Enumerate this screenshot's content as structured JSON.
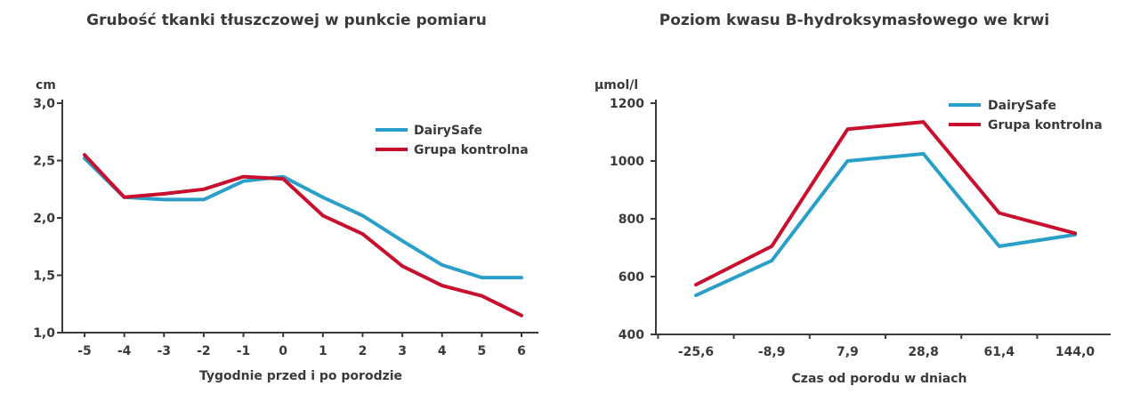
{
  "chart_data": [
    {
      "type": "line",
      "title": "Grubość tkanki tłuszczowej w punkcie pomiaru",
      "ylabel": "cm",
      "xlabel": "Tygodnie przed i po porodzie",
      "categories": [
        "-5",
        "-4",
        "-3",
        "-2",
        "-1",
        "0",
        "1",
        "2",
        "3",
        "4",
        "5",
        "6"
      ],
      "yticks": [
        "1,0",
        "1,5",
        "2,0",
        "2,5",
        "3,0"
      ],
      "ylim": [
        1.0,
        3.0
      ],
      "grid": false,
      "legend_position": "top-right",
      "series": [
        {
          "name": "DairySafe",
          "color": "#2aa0c8",
          "values": [
            2.52,
            2.18,
            2.16,
            2.16,
            2.32,
            2.36,
            2.18,
            2.02,
            1.8,
            1.59,
            1.48,
            1.48
          ]
        },
        {
          "name": "Grupa kontrolna",
          "color": "#c8102e",
          "values": [
            2.55,
            2.18,
            2.21,
            2.25,
            2.36,
            2.34,
            2.02,
            1.86,
            1.58,
            1.41,
            1.32,
            1.15
          ]
        }
      ]
    },
    {
      "type": "line",
      "title": "Poziom kwasu B-hydroksymasłowego we krwi",
      "ylabel": "µmol/l",
      "xlabel": "Czas od porodu w dniach",
      "categories": [
        "-25,6",
        "-8,9",
        "7,9",
        "28,8",
        "61,4",
        "144,0"
      ],
      "yticks": [
        "400",
        "600",
        "800",
        "1000",
        "1200"
      ],
      "ylim": [
        400,
        1200
      ],
      "grid": false,
      "legend_position": "top-right",
      "series": [
        {
          "name": "DairySafe",
          "color": "#2aa0c8",
          "values": [
            535,
            655,
            1000,
            1025,
            705,
            745
          ]
        },
        {
          "name": "Grupa kontrolna",
          "color": "#c8102e",
          "values": [
            572,
            705,
            1110,
            1135,
            820,
            750
          ]
        }
      ]
    }
  ]
}
